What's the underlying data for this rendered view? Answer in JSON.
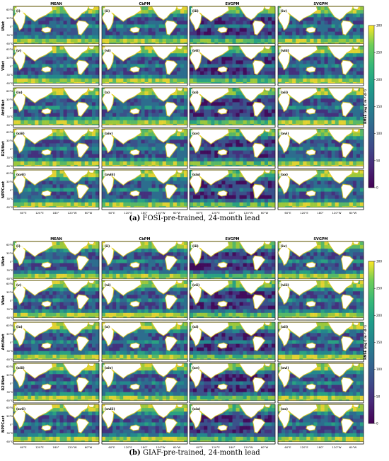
{
  "figure": {
    "columns": [
      "MEAN",
      "CbPM",
      "EVGPM",
      "SVGPM"
    ],
    "rows": [
      "UNet",
      "VNet",
      "AttUNet",
      "R2UNet",
      "NPPCast"
    ],
    "panel_labels": [
      "(i)",
      "(ii)",
      "(iii)",
      "(iv)",
      "(v)",
      "(vi)",
      "(vii)",
      "(viii)",
      "(ix)",
      "(x)",
      "(xi)",
      "(xii)",
      "(xiii)",
      "(xiv)",
      "(xv)",
      "(xvi)",
      "(xvii)",
      "(xviii)",
      "(xix)",
      "(xx)"
    ],
    "lat_ticks": [
      "60°N",
      "30°N",
      "0°",
      "30°S",
      "60°S"
    ],
    "lon_ticks": [
      "60°E",
      "120°E",
      "180°",
      "120°W",
      "60°W"
    ],
    "colorbar": {
      "label": "RMSE (mg C m⁻² d⁻¹)",
      "ticks": [
        0,
        50,
        100,
        150,
        200,
        250,
        300
      ],
      "range": [
        0,
        300
      ],
      "colormap": "viridis"
    }
  },
  "subfigures": [
    {
      "tag": "(a)",
      "caption": "FOSI-pre-trained, 24-month lead"
    },
    {
      "tag": "(b)",
      "caption": "GIAF-pre-trained, 24-month lead"
    }
  ],
  "colors": {
    "land": "#ffffff",
    "coast": "#000000"
  }
}
